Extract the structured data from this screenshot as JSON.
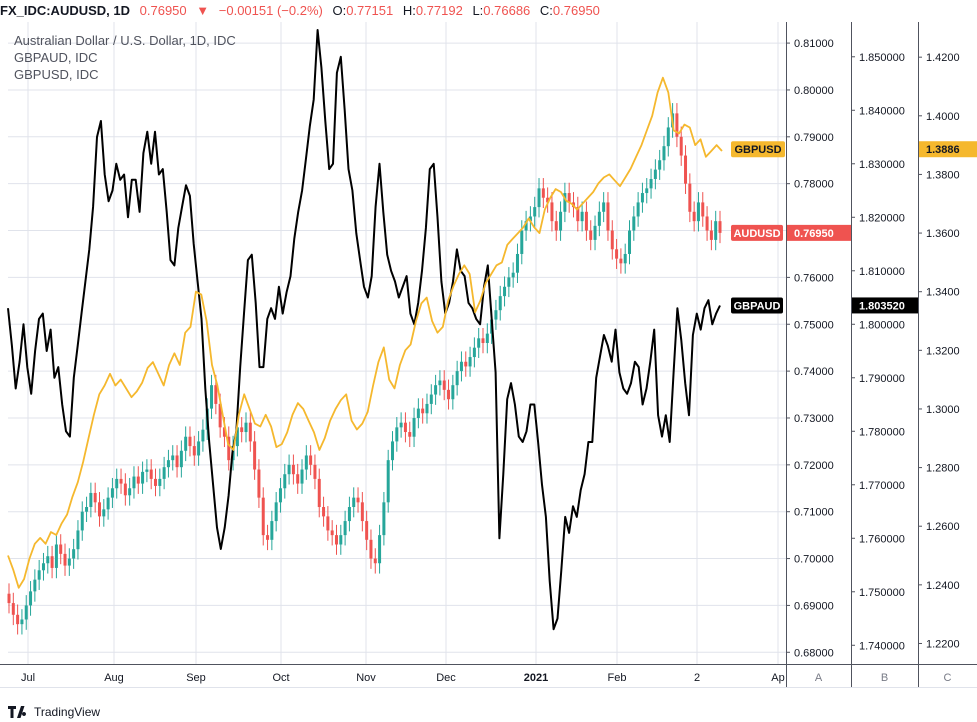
{
  "header": {
    "symbol": "FX_IDC:AUDUSD, 1D",
    "last": "0.76950",
    "change": "−0.00151 (−0.2%)",
    "o_label": "O:",
    "o": "0.77151",
    "h_label": "H:",
    "h": "0.77192",
    "l_label": "L:",
    "l": "0.76686",
    "c_label": "C:",
    "c": "0.76950"
  },
  "legend": [
    "Australian Dollar / U.S. Dollar, 1D, IDC",
    "GBPAUD, IDC",
    "GBPUSD, IDC"
  ],
  "scale_buttons": [
    "A",
    "B",
    "C"
  ],
  "footer": {
    "brand": "TradingView"
  },
  "colors": {
    "up": "#26a69a",
    "down": "#ef5350",
    "gbpusd": "#f5b82e",
    "gbpaud": "#000000",
    "grid": "#e0e3eb",
    "text": "#131722"
  },
  "chart_data": {
    "type": "line",
    "x_tick_labels": [
      "Jul",
      "Aug",
      "Sep",
      "Oct",
      "Nov",
      "Dec",
      "2021",
      "Feb",
      "2",
      "Ap"
    ],
    "axes": {
      "A": {
        "series": "AUDUSD",
        "ticks": [
          "0.81000",
          "0.80000",
          "0.79000",
          "0.78000",
          "0.77000",
          "0.76000",
          "0.75000",
          "0.74000",
          "0.73000",
          "0.72000",
          "0.71000",
          "0.70000",
          "0.69000",
          "0.68000"
        ],
        "range": [
          0.6775,
          0.8145
        ]
      },
      "B": {
        "series": "GBPAUD",
        "ticks": [
          "1.850000",
          "1.840000",
          "1.830000",
          "1.820000",
          "1.810000",
          "1.800000",
          "1.790000",
          "1.780000",
          "1.770000",
          "1.760000",
          "1.750000",
          "1.740000"
        ],
        "range": [
          1.7365,
          1.8565
        ]
      },
      "C": {
        "series": "GBPUSD",
        "ticks": [
          "1.4200",
          "1.4000",
          "1.3800",
          "1.3600",
          "1.3400",
          "1.3200",
          "1.3000",
          "1.2800",
          "1.2600",
          "1.2400",
          "1.2200"
        ],
        "range": [
          1.213,
          1.432
        ]
      }
    },
    "price_labels": [
      {
        "name": "GBPUSD",
        "value": "1.3886",
        "color": "#f5b82e"
      },
      {
        "name": "AUDUSD",
        "value": "0.76950",
        "color": "#ef5350"
      },
      {
        "name": "GBPAUD",
        "value": "1.803520",
        "color": "#000000"
      }
    ],
    "series": [
      {
        "name": "AUDUSD",
        "kind": "candlestick",
        "axis": "A",
        "close": [
          0.6905,
          0.688,
          0.686,
          0.687,
          0.69,
          0.693,
          0.6955,
          0.6975,
          0.699,
          0.7005,
          0.698,
          0.703,
          0.701,
          0.6985,
          0.7,
          0.702,
          0.706,
          0.71,
          0.711,
          0.714,
          0.712,
          0.709,
          0.7105,
          0.713,
          0.715,
          0.717,
          0.716,
          0.7135,
          0.715,
          0.7175,
          0.716,
          0.7185,
          0.719,
          0.717,
          0.7155,
          0.717,
          0.7195,
          0.721,
          0.722,
          0.7195,
          0.723,
          0.726,
          0.724,
          0.722,
          0.725,
          0.7275,
          0.732,
          0.737,
          0.733,
          0.728,
          0.726,
          0.721,
          0.724,
          0.728,
          0.727,
          0.729,
          0.725,
          0.719,
          0.713,
          0.705,
          0.704,
          0.708,
          0.712,
          0.715,
          0.718,
          0.72,
          0.718,
          0.716,
          0.719,
          0.722,
          0.72,
          0.717,
          0.711,
          0.709,
          0.706,
          0.705,
          0.703,
          0.705,
          0.708,
          0.711,
          0.713,
          0.712,
          0.708,
          0.704,
          0.7,
          0.699,
          0.705,
          0.712,
          0.721,
          0.725,
          0.728,
          0.729,
          0.727,
          0.726,
          0.73,
          0.732,
          0.731,
          0.733,
          0.735,
          0.737,
          0.738,
          0.736,
          0.734,
          0.737,
          0.74,
          0.742,
          0.741,
          0.743,
          0.745,
          0.747,
          0.746,
          0.748,
          0.751,
          0.753,
          0.756,
          0.758,
          0.76,
          0.761,
          0.765,
          0.77,
          0.772,
          0.773,
          0.775,
          0.779,
          0.777,
          0.776,
          0.772,
          0.77,
          0.774,
          0.778,
          0.776,
          0.775,
          0.772,
          0.774,
          0.77,
          0.768,
          0.771,
          0.774,
          0.776,
          0.77,
          0.766,
          0.764,
          0.763,
          0.765,
          0.77,
          0.773,
          0.776,
          0.778,
          0.779,
          0.781,
          0.783,
          0.785,
          0.788,
          0.792,
          0.795,
          0.79,
          0.786,
          0.78,
          0.774,
          0.772,
          0.776,
          0.773,
          0.77,
          0.768,
          0.772,
          0.7695
        ]
      },
      {
        "name": "GBPAUD",
        "kind": "line",
        "axis": "B",
        "values": [
          1.803,
          1.796,
          1.788,
          1.793,
          1.8,
          1.792,
          1.787,
          1.795,
          1.801,
          1.802,
          1.795,
          1.799,
          1.79,
          1.792,
          1.785,
          1.78,
          1.779,
          1.79,
          1.796,
          1.802,
          1.808,
          1.814,
          1.822,
          1.835,
          1.838,
          1.828,
          1.823,
          1.825,
          1.83,
          1.827,
          1.828,
          1.82,
          1.827,
          1.827,
          1.821,
          1.832,
          1.836,
          1.83,
          1.836,
          1.828,
          1.829,
          1.821,
          1.812,
          1.811,
          1.818,
          1.822,
          1.826,
          1.824,
          1.815,
          1.808,
          1.801,
          1.788,
          1.778,
          1.77,
          1.762,
          1.758,
          1.762,
          1.768,
          1.776,
          1.78,
          1.792,
          1.802,
          1.812,
          1.813,
          1.804,
          1.792,
          1.792,
          1.801,
          1.803,
          1.801,
          1.807,
          1.802,
          1.806,
          1.809,
          1.816,
          1.821,
          1.825,
          1.831,
          1.837,
          1.842,
          1.855,
          1.848,
          1.838,
          1.829,
          1.83,
          1.847,
          1.85,
          1.84,
          1.829,
          1.825,
          1.817,
          1.812,
          1.807,
          1.805,
          1.809,
          1.822,
          1.83,
          1.821,
          1.813,
          1.81,
          1.808,
          1.805,
          1.807,
          1.809,
          1.802,
          1.8,
          1.804,
          1.81,
          1.818,
          1.829,
          1.83,
          1.82,
          1.808,
          1.802,
          1.804,
          1.808,
          1.814,
          1.81,
          1.809,
          1.804,
          1.803,
          1.801,
          1.8,
          1.807,
          1.811,
          1.801,
          1.791,
          1.76,
          1.772,
          1.786,
          1.789,
          1.785,
          1.779,
          1.778,
          1.78,
          1.785,
          1.785,
          1.778,
          1.77,
          1.764,
          1.752,
          1.743,
          1.745,
          1.754,
          1.764,
          1.761,
          1.766,
          1.764,
          1.769,
          1.772,
          1.778,
          1.778,
          1.79,
          1.794,
          1.798,
          1.796,
          1.793,
          1.799,
          1.791,
          1.788,
          1.787,
          1.789,
          1.793,
          1.792,
          1.785,
          1.788,
          1.793,
          1.799,
          1.783,
          1.779,
          1.783,
          1.778,
          1.791,
          1.803,
          1.797,
          1.789,
          1.783,
          1.798,
          1.802,
          1.799,
          1.803,
          1.8045,
          1.8,
          1.802,
          1.8035
        ]
      },
      {
        "name": "GBPUSD",
        "kind": "line",
        "axis": "C",
        "values": [
          1.25,
          1.245,
          1.239,
          1.242,
          1.249,
          1.254,
          1.256,
          1.254,
          1.258,
          1.257,
          1.261,
          1.264,
          1.27,
          1.275,
          1.282,
          1.29,
          1.298,
          1.305,
          1.308,
          1.312,
          1.308,
          1.31,
          1.307,
          1.304,
          1.306,
          1.309,
          1.314,
          1.316,
          1.312,
          1.308,
          1.315,
          1.319,
          1.315,
          1.326,
          1.328,
          1.34,
          1.339,
          1.33,
          1.315,
          1.308,
          1.298,
          1.288,
          1.286,
          1.298,
          1.305,
          1.3,
          1.295,
          1.294,
          1.298,
          1.294,
          1.287,
          1.288,
          1.292,
          1.298,
          1.302,
          1.3,
          1.296,
          1.292,
          1.286,
          1.29,
          1.296,
          1.3,
          1.303,
          1.305,
          1.296,
          1.293,
          1.295,
          1.299,
          1.308,
          1.316,
          1.321,
          1.31,
          1.307,
          1.315,
          1.32,
          1.322,
          1.33,
          1.336,
          1.338,
          1.33,
          1.326,
          1.328,
          1.337,
          1.342,
          1.346,
          1.349,
          1.346,
          1.333,
          1.337,
          1.343,
          1.346,
          1.349,
          1.35,
          1.356,
          1.358,
          1.36,
          1.362,
          1.365,
          1.362,
          1.36,
          1.368,
          1.372,
          1.375,
          1.374,
          1.371,
          1.37,
          1.368,
          1.37,
          1.372,
          1.374,
          1.377,
          1.379,
          1.38,
          1.378,
          1.376,
          1.379,
          1.382,
          1.386,
          1.39,
          1.395,
          1.4,
          1.408,
          1.413,
          1.408,
          1.395,
          1.394,
          1.397,
          1.396,
          1.39,
          1.392,
          1.386,
          1.388,
          1.39,
          1.388
        ]
      }
    ]
  }
}
